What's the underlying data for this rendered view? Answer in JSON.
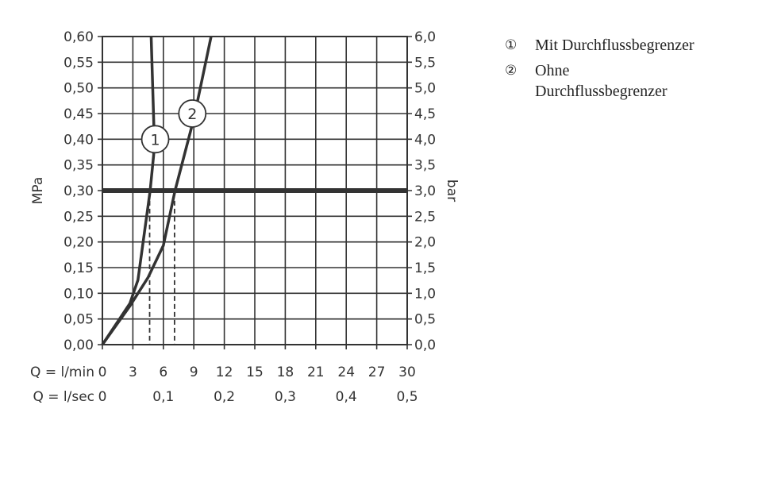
{
  "chart_data": {
    "type": "line",
    "xlabel": "Q = l/min",
    "xlabel2": "Q = l/sec",
    "ylabel": "MPa",
    "ylabel_right": "bar",
    "xlim": [
      0,
      30
    ],
    "ylim": [
      0,
      0.6
    ],
    "ylim_right": [
      0,
      6
    ],
    "grid": true,
    "x_ticks": [
      "0",
      "3",
      "6",
      "9",
      "12",
      "15",
      "18",
      "21",
      "24",
      "27",
      "30"
    ],
    "x2_ticks": [
      {
        "label": "0",
        "at": 0
      },
      {
        "label": "0,1",
        "at": 6
      },
      {
        "label": "0,2",
        "at": 12
      },
      {
        "label": "0,3",
        "at": 18
      },
      {
        "label": "0,4",
        "at": 24
      },
      {
        "label": "0,5",
        "at": 30
      }
    ],
    "y_ticks": [
      "0,00",
      "0,05",
      "0,10",
      "0,15",
      "0,20",
      "0,25",
      "0,30",
      "0,35",
      "0,40",
      "0,45",
      "0,50",
      "0,55",
      "0,60"
    ],
    "y_right_ticks": [
      "0,0",
      "0,5",
      "1,0",
      "1,5",
      "2,0",
      "2,5",
      "3,0",
      "3,5",
      "4,0",
      "4,5",
      "5,0",
      "5,5",
      "6,0"
    ],
    "reference_line": {
      "y": 0.3
    },
    "series": [
      {
        "name": "1",
        "x": [
          0,
          2.7,
          3.5,
          4.7,
          5.05,
          5.06,
          4.8
        ],
        "y": [
          0,
          0.08,
          0.126,
          0.3,
          0.37,
          0.43,
          0.6
        ],
        "marker_at": [
          5.2,
          0.4
        ],
        "drop_line_x": 4.65
      },
      {
        "name": "2",
        "x": [
          0,
          2.7,
          4.5,
          6.0,
          7.15,
          9.0,
          10.7
        ],
        "y": [
          0,
          0.075,
          0.131,
          0.193,
          0.3,
          0.44,
          0.6
        ],
        "marker_at": [
          8.85,
          0.45
        ],
        "drop_line_x": 7.1
      }
    ],
    "drop_line_top": 0.28,
    "line_color": "#333333"
  },
  "legend": [
    {
      "num": "①",
      "text": "Mit Durchflussbegrenzer"
    },
    {
      "num": "②",
      "text": "Ohne Durchflussbegrenzer"
    }
  ]
}
